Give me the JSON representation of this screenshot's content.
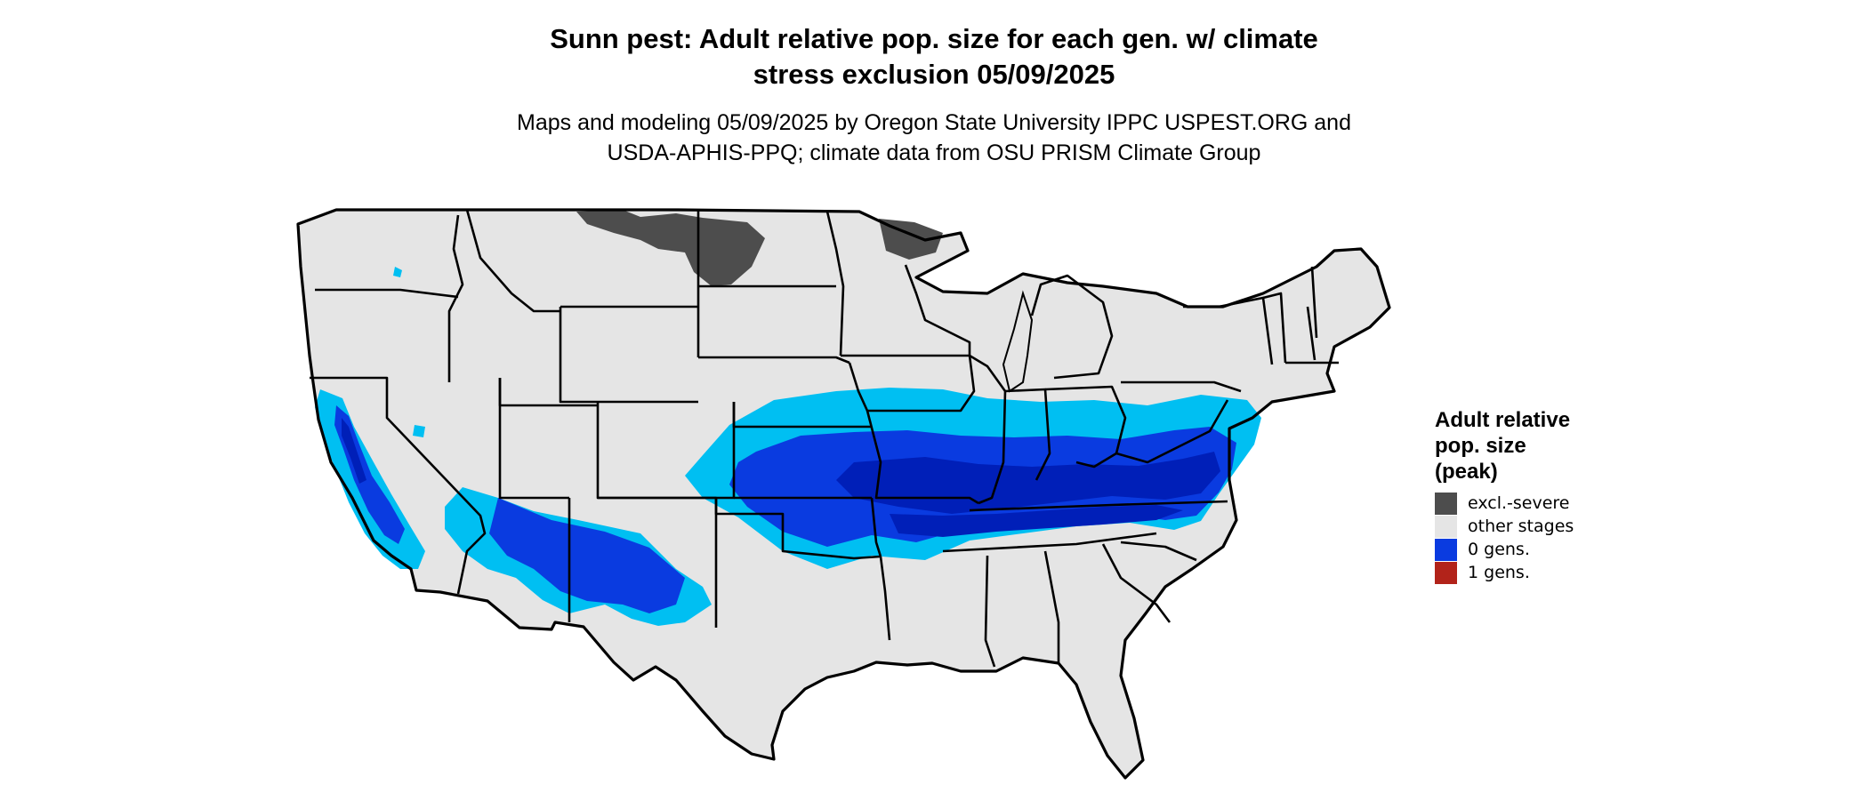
{
  "header": {
    "title_line1": "Sunn pest: Adult relative pop. size for each gen. w/ climate",
    "title_line2": "stress exclusion 05/09/2025",
    "subtitle_line1": "Maps and modeling 05/09/2025 by Oregon State University IPPC USPEST.ORG and",
    "subtitle_line2": "USDA-APHIS-PPQ; climate data from OSU PRISM Climate Group"
  },
  "legend": {
    "title_line1": "Adult relative",
    "title_line2": "pop. size",
    "title_line3": "(peak)",
    "items": [
      {
        "label": "excl.-severe",
        "color": "#4d4d4d"
      },
      {
        "label": "other stages",
        "color": "#e5e5e5"
      },
      {
        "label": "0 gens.",
        "color": "#0a3be0"
      },
      {
        "label": "1 gens.",
        "color": "#b2231a"
      }
    ]
  },
  "map": {
    "land_color": "#e5e5e5",
    "border_color": "#000000",
    "zone_colors": {
      "excluded": "#4d4d4d",
      "light": "#00bff2",
      "medium": "#0a3be0",
      "dark": "#001fb8"
    }
  }
}
